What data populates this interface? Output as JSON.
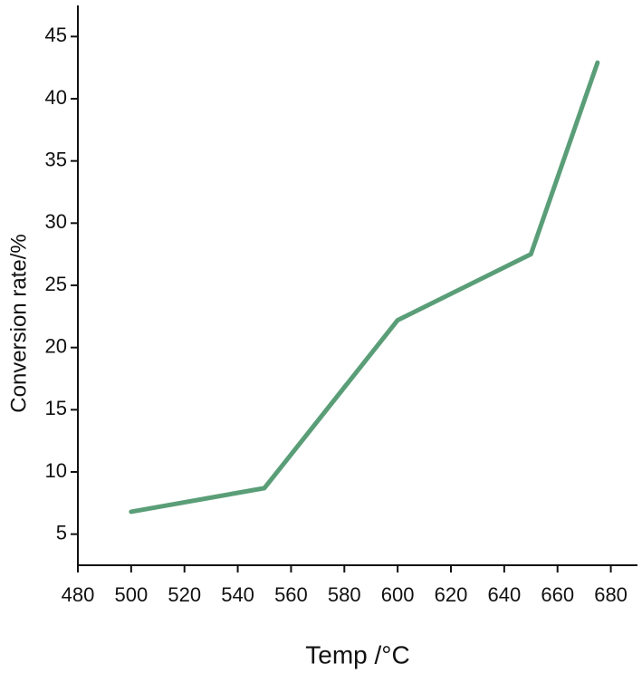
{
  "chart_data": {
    "type": "line",
    "x_label": "Temp /°C",
    "y_label": "Conversion rate/%",
    "x": [
      500,
      550,
      600,
      650,
      675
    ],
    "series": [
      {
        "color": "#5a9e78",
        "values": [
          6.8,
          8.7,
          22.2,
          27.5,
          42.9
        ]
      }
    ],
    "xlim": [
      480,
      690
    ],
    "xticks": [
      480,
      500,
      520,
      540,
      560,
      580,
      600,
      620,
      640,
      660,
      680
    ],
    "ylim": [
      2.5,
      47.5
    ],
    "yticks": [
      5,
      10,
      15,
      20,
      25,
      30,
      35,
      40,
      45
    ],
    "grid": false
  }
}
